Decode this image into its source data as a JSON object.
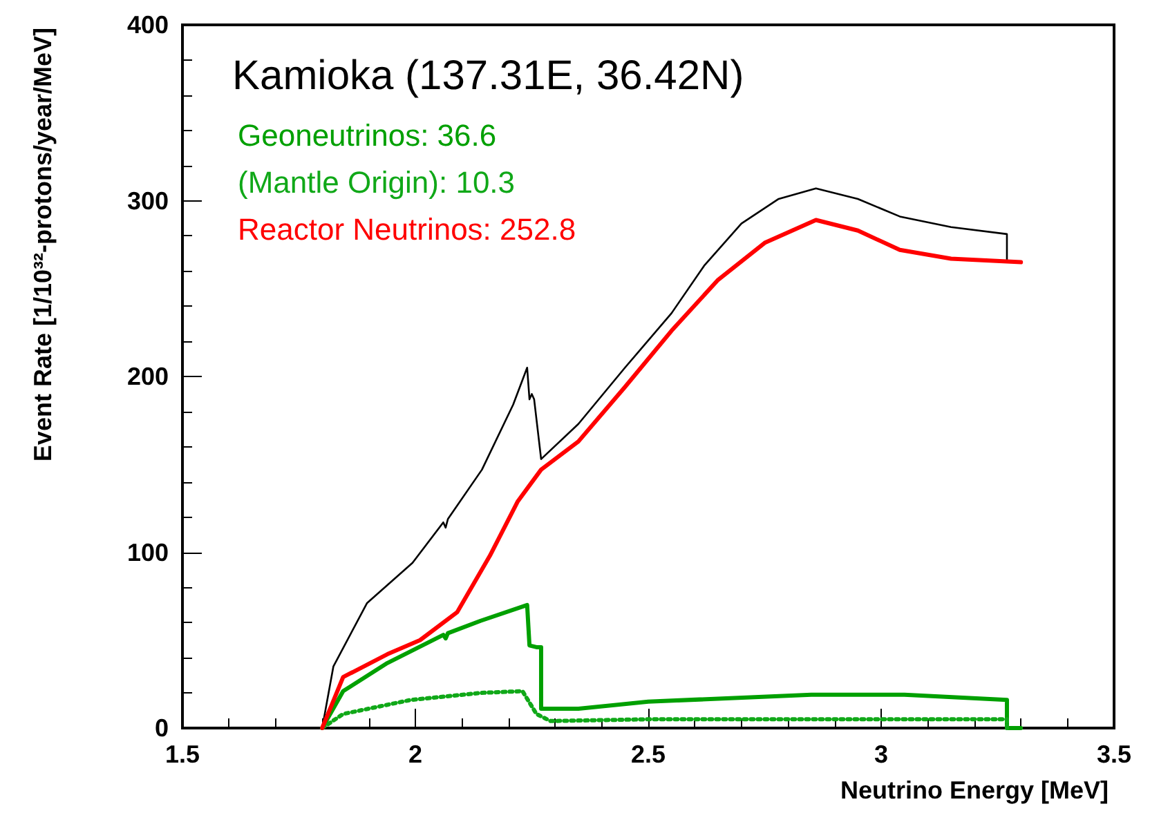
{
  "chart_data": {
    "type": "line",
    "title": "Kamioka (137.31E, 36.42N)",
    "xlabel": "Neutrino Energy [MeV]",
    "ylabel": "Event Rate [1/10³²-protons/year/MeV]",
    "xlim": [
      1.5,
      3.5
    ],
    "xticks": [
      1.5,
      2,
      2.5,
      3,
      3.5
    ],
    "ylim": [
      0,
      400
    ],
    "yticks": [
      0,
      100,
      200,
      300,
      400
    ],
    "grid": false,
    "legend": "top left",
    "marker": "none",
    "series": [
      {
        "color": "#000000",
        "line_style": "solid",
        "x": [
          1.8,
          1.824,
          1.896,
          1.994,
          2.06,
          2.065,
          2.07,
          2.143,
          2.21,
          2.24,
          2.245,
          2.25,
          2.255,
          2.27,
          2.35,
          2.45,
          2.55,
          2.62,
          2.7,
          2.78,
          2.86,
          2.95,
          3.04,
          3.15,
          3.27,
          3.27
        ],
        "values": [
          0,
          35,
          71,
          94,
          117,
          114,
          119,
          147,
          184,
          205,
          187,
          190,
          187,
          153,
          173,
          205,
          236,
          263,
          287,
          301,
          307,
          301,
          291,
          285,
          281,
          265
        ]
      },
      {
        "name": "Geoneutrinos: 36.6",
        "color": "#00a000",
        "line_style": "solid",
        "x": [
          1.8,
          1.845,
          1.94,
          2.06,
          2.065,
          2.07,
          2.14,
          2.24,
          2.245,
          2.26,
          2.27,
          2.27,
          2.35,
          2.5,
          2.85,
          3.05,
          3.27,
          3.27,
          3.3
        ],
        "values": [
          0,
          21,
          37,
          53,
          51,
          54,
          61,
          70,
          47,
          46,
          46,
          11,
          11,
          15,
          19,
          19,
          16,
          0,
          0
        ]
      },
      {
        "name": "(Mantle Origin): 10.3",
        "color": "#10a818",
        "line_style": "dotted",
        "x": [
          1.8,
          1.845,
          1.99,
          2.14,
          2.23,
          2.26,
          2.29,
          2.5,
          3.0,
          3.27,
          3.27
        ],
        "values": [
          0,
          8,
          16,
          20,
          21,
          8,
          4,
          5,
          5,
          5,
          0
        ]
      },
      {
        "name": "Reactor Neutrinos: 252.8",
        "color": "#ff0000",
        "line_style": "solid",
        "x": [
          1.8,
          1.845,
          1.94,
          2.01,
          2.09,
          2.16,
          2.22,
          2.27,
          2.35,
          2.45,
          2.55,
          2.65,
          2.75,
          2.86,
          2.95,
          3.04,
          3.15,
          3.3
        ],
        "values": [
          0,
          29,
          42,
          50,
          66,
          98,
          129,
          147,
          163,
          194,
          226,
          255,
          276,
          289,
          283,
          272,
          267,
          265
        ]
      }
    ]
  }
}
